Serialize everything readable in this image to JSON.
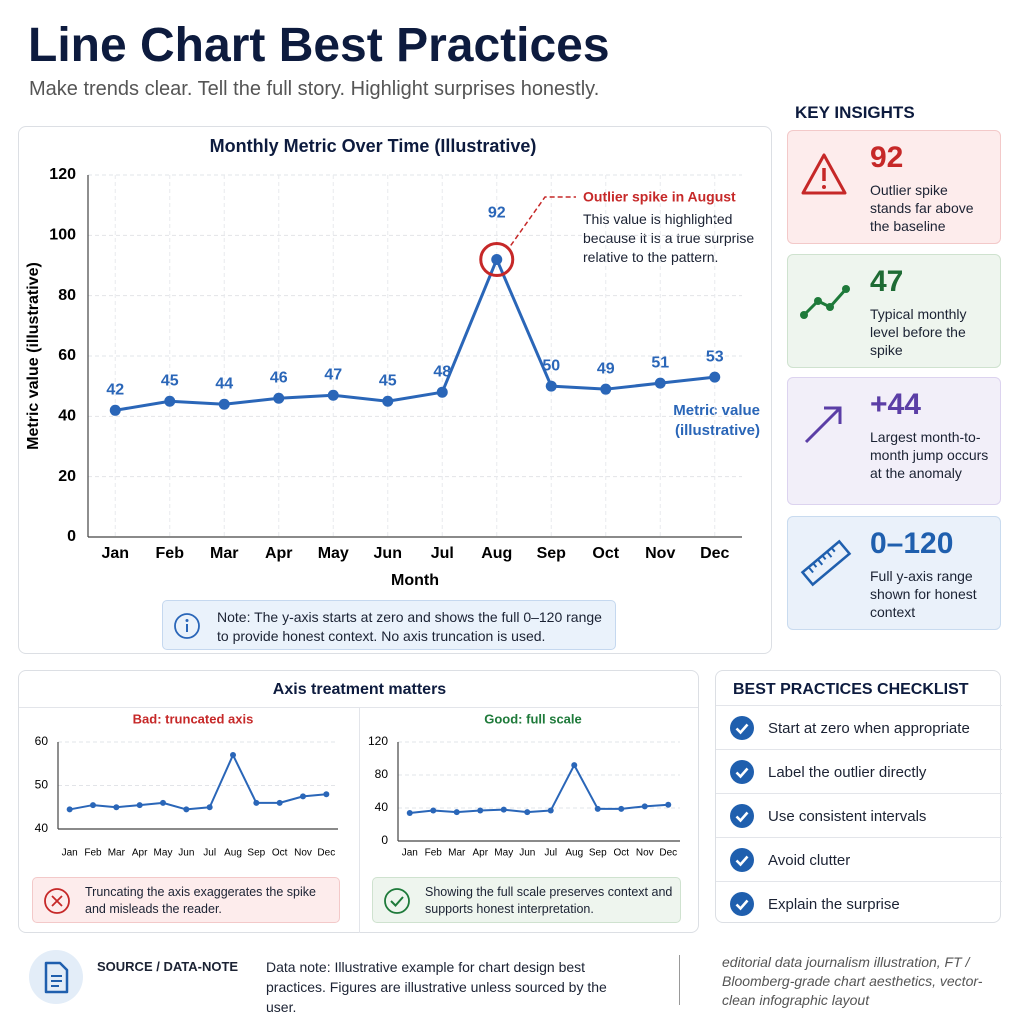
{
  "header": {
    "title": "Line Chart Best Practices",
    "subtitle": "Make trends clear. Tell the full story. Highlight surprises honestly."
  },
  "chart_data": [
    {
      "type": "line",
      "title": "Monthly Metric Over Time (Illustrative)",
      "x_label": "Month",
      "y_label": "Metric value (illustrative)",
      "categories": [
        "Jan",
        "Feb",
        "Mar",
        "Apr",
        "May",
        "Jun",
        "Jul",
        "Aug",
        "Sep",
        "Oct",
        "Nov",
        "Dec"
      ],
      "series": [
        {
          "name": "Metric value (illustrative)",
          "color": "#2a66b8",
          "values": [
            42,
            45,
            44,
            46,
            47,
            45,
            48,
            92,
            50,
            49,
            51,
            53
          ]
        }
      ],
      "ylim": [
        0,
        120
      ],
      "yticks": [
        0,
        20,
        40,
        60,
        80,
        100,
        120
      ],
      "grid": true,
      "data_labels": true,
      "annotation": {
        "title": "Outlier spike in August",
        "text": "This value is highlighted because it is a true surprise relative to the pattern."
      },
      "note": "Note: The y-axis starts at zero and shows the full 0–120 range to provide honest context. No axis truncation is used."
    },
    {
      "type": "line",
      "title": "Bad: truncated axis",
      "categories": [
        "Jan",
        "Feb",
        "Mar",
        "Apr",
        "May",
        "Jun",
        "Jul",
        "Aug",
        "Sep",
        "Oct",
        "Nov",
        "Dec"
      ],
      "series": [
        {
          "color": "#2a66b8",
          "values": [
            44.5,
            45.5,
            45,
            45.5,
            46,
            44.5,
            45,
            57,
            46,
            46,
            47.5,
            48
          ]
        }
      ],
      "ylim": [
        40,
        60
      ],
      "yticks": [
        40,
        50,
        60
      ],
      "grid": true,
      "caption": "Truncating the axis exaggerates the spike and misleads the reader."
    },
    {
      "type": "line",
      "title": "Good: full scale",
      "categories": [
        "Jan",
        "Feb",
        "Mar",
        "Apr",
        "May",
        "Jun",
        "Jul",
        "Aug",
        "Sep",
        "Oct",
        "Nov",
        "Dec"
      ],
      "series": [
        {
          "color": "#2a66b8",
          "values": [
            34,
            37,
            35,
            37,
            38,
            35,
            37,
            92,
            39,
            39,
            42,
            44
          ]
        }
      ],
      "ylim": [
        0,
        120
      ],
      "yticks": [
        0,
        40,
        80,
        120
      ],
      "grid": true,
      "caption": "Showing the full scale preserves context and supports honest interpretation."
    }
  ],
  "comparison": {
    "title": "Axis treatment matters"
  },
  "insights": {
    "title": "KEY INSIGHTS",
    "cards": [
      {
        "value": "92",
        "text": "Outlier spike stands far above the baseline"
      },
      {
        "value": "47",
        "text": "Typical monthly level before the spike"
      },
      {
        "value": "+44",
        "text": "Largest month-to-month jump occurs at the anomaly"
      },
      {
        "value": "0–120",
        "text": "Full y-axis range shown for honest context"
      }
    ]
  },
  "checklist": {
    "title": "BEST PRACTICES CHECKLIST",
    "items": [
      "Start at zero when appropriate",
      "Label the outlier directly",
      "Use consistent intervals",
      "Avoid clutter",
      "Explain the surprise"
    ]
  },
  "footer": {
    "label": "SOURCE / DATA-NOTE",
    "note": "Data note: Illustrative example for chart design best practices. Figures are illustrative unless sourced by the user.",
    "style": "editorial data journalism illustration, FT / Bloomberg-grade chart aesthetics, vector-clean infographic layout"
  }
}
